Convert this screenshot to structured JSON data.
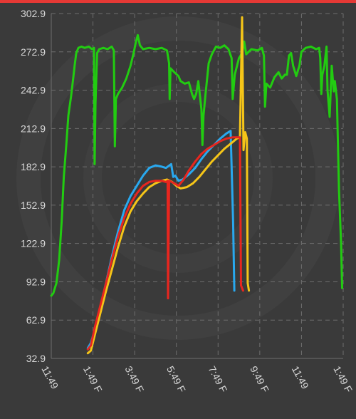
{
  "colors": {
    "background": "#3a3a3a",
    "top_bar": "#e53935",
    "grid": "#6e6e6e",
    "axis_text": "#d8d8d8",
    "green": "#22cc11",
    "blue": "#29a8ee",
    "red": "#e8261f",
    "yellow": "#f5c518"
  },
  "chart_data": {
    "type": "line",
    "title": "",
    "xlabel": "",
    "ylabel": "",
    "grid": true,
    "legend": "none",
    "x_tick_labels": [
      "11:49",
      "1:49 F",
      "3:49 F",
      "5:49 F",
      "7:49 F",
      "9:49 F",
      "11:49",
      "1:49 F"
    ],
    "y_tick_labels": [
      "302.9",
      "272.9",
      "242.9",
      "212.9",
      "182.9",
      "152.9",
      "122.9",
      "92.9",
      "62.9",
      "32.9"
    ],
    "xlim": [
      0,
      14
    ],
    "ylim": [
      32.9,
      302.9
    ],
    "series": [
      {
        "color_key": "green",
        "points": [
          [
            0,
            82
          ],
          [
            0.1,
            84
          ],
          [
            0.25,
            92
          ],
          [
            0.38,
            110
          ],
          [
            0.5,
            140
          ],
          [
            0.6,
            175
          ],
          [
            0.72,
            200
          ],
          [
            0.82,
            223
          ],
          [
            0.95,
            238
          ],
          [
            1.05,
            252
          ],
          [
            1.12,
            262
          ],
          [
            1.2,
            272
          ],
          [
            1.3,
            276
          ],
          [
            1.45,
            277
          ],
          [
            1.6,
            276
          ],
          [
            1.8,
            277
          ],
          [
            1.95,
            275
          ],
          [
            2.05,
            276
          ],
          [
            2.08,
            185
          ],
          [
            2.12,
            232
          ],
          [
            2.2,
            272
          ],
          [
            2.3,
            275
          ],
          [
            2.5,
            276
          ],
          [
            2.7,
            275
          ],
          [
            2.9,
            277
          ],
          [
            3.0,
            274
          ],
          [
            3.05,
            199
          ],
          [
            3.1,
            236
          ],
          [
            3.2,
            240
          ],
          [
            3.4,
            245
          ],
          [
            3.6,
            252
          ],
          [
            3.8,
            262
          ],
          [
            3.95,
            272
          ],
          [
            4.05,
            280
          ],
          [
            4.15,
            286
          ],
          [
            4.25,
            278
          ],
          [
            4.4,
            275
          ],
          [
            4.7,
            276
          ],
          [
            5.0,
            275
          ],
          [
            5.3,
            276
          ],
          [
            5.55,
            274
          ],
          [
            5.65,
            264
          ],
          [
            5.68,
            236
          ],
          [
            5.72,
            260
          ],
          [
            5.9,
            257
          ],
          [
            6.1,
            254
          ],
          [
            6.2,
            250
          ],
          [
            6.4,
            248
          ],
          [
            6.6,
            249
          ],
          [
            6.75,
            240
          ],
          [
            6.85,
            236
          ],
          [
            6.95,
            240
          ],
          [
            7.05,
            250
          ],
          [
            7.2,
            228
          ],
          [
            7.25,
            200
          ],
          [
            7.3,
            223
          ],
          [
            7.4,
            240
          ],
          [
            7.55,
            264
          ],
          [
            7.7,
            271
          ],
          [
            7.9,
            277
          ],
          [
            8.1,
            276
          ],
          [
            8.3,
            278
          ],
          [
            8.5,
            275
          ],
          [
            8.65,
            268
          ],
          [
            8.7,
            236
          ],
          [
            8.8,
            255
          ],
          [
            9.0,
            268
          ],
          [
            9.15,
            272
          ],
          [
            9.25,
            281
          ],
          [
            9.35,
            271
          ],
          [
            9.6,
            275
          ],
          [
            9.9,
            274
          ],
          [
            10.1,
            276
          ],
          [
            10.2,
            270
          ],
          [
            10.25,
            230
          ],
          [
            10.32,
            248
          ],
          [
            10.5,
            245
          ],
          [
            10.7,
            253
          ],
          [
            10.9,
            257
          ],
          [
            11.05,
            252
          ],
          [
            11.2,
            255
          ],
          [
            11.3,
            255
          ],
          [
            11.4,
            270
          ],
          [
            11.5,
            272
          ],
          [
            11.6,
            262
          ],
          [
            11.75,
            254
          ],
          [
            11.9,
            262
          ],
          [
            12.0,
            273
          ],
          [
            12.2,
            276
          ],
          [
            12.45,
            277
          ],
          [
            12.7,
            275
          ],
          [
            12.85,
            276
          ],
          [
            12.9,
            268
          ],
          [
            12.95,
            240
          ],
          [
            13.0,
            255
          ],
          [
            13.1,
            262
          ],
          [
            13.2,
            277
          ],
          [
            13.25,
            243
          ],
          [
            13.35,
            222
          ],
          [
            13.45,
            262
          ],
          [
            13.55,
            242
          ],
          [
            13.6,
            250
          ],
          [
            13.7,
            236
          ],
          [
            13.8,
            165
          ],
          [
            13.9,
            122
          ],
          [
            13.95,
            88
          ]
        ]
      },
      {
        "color_key": "blue",
        "points": [
          [
            1.75,
            41
          ],
          [
            1.9,
            45
          ],
          [
            2.1,
            56
          ],
          [
            2.35,
            72
          ],
          [
            2.6,
            90
          ],
          [
            2.9,
            112
          ],
          [
            3.2,
            132
          ],
          [
            3.5,
            149
          ],
          [
            3.8,
            160
          ],
          [
            4.1,
            168
          ],
          [
            4.4,
            176
          ],
          [
            4.7,
            182
          ],
          [
            5.0,
            184
          ],
          [
            5.3,
            183
          ],
          [
            5.5,
            182
          ],
          [
            5.75,
            185
          ],
          [
            5.85,
            175
          ],
          [
            5.95,
            176
          ],
          [
            6.1,
            172
          ],
          [
            6.3,
            173
          ],
          [
            6.6,
            177
          ],
          [
            6.9,
            182
          ],
          [
            7.2,
            189
          ],
          [
            7.5,
            195
          ],
          [
            7.8,
            200
          ],
          [
            8.1,
            205
          ],
          [
            8.4,
            209
          ],
          [
            8.6,
            211
          ],
          [
            8.72,
            140
          ],
          [
            8.78,
            86
          ]
        ]
      },
      {
        "color_key": "yellow",
        "points": [
          [
            1.75,
            37
          ],
          [
            1.9,
            39
          ],
          [
            2.1,
            52
          ],
          [
            2.35,
            68
          ],
          [
            2.6,
            84
          ],
          [
            2.9,
            102
          ],
          [
            3.2,
            120
          ],
          [
            3.5,
            136
          ],
          [
            3.8,
            148
          ],
          [
            4.1,
            156
          ],
          [
            4.4,
            162
          ],
          [
            4.7,
            167
          ],
          [
            5.0,
            170
          ],
          [
            5.3,
            172
          ],
          [
            5.55,
            173
          ],
          [
            5.8,
            171
          ],
          [
            6.0,
            168
          ],
          [
            6.2,
            166
          ],
          [
            6.5,
            167
          ],
          [
            6.8,
            170
          ],
          [
            7.1,
            175
          ],
          [
            7.4,
            181
          ],
          [
            7.7,
            187
          ],
          [
            8.0,
            192
          ],
          [
            8.3,
            197
          ],
          [
            8.6,
            201
          ],
          [
            8.9,
            205
          ],
          [
            9.05,
            206
          ],
          [
            9.15,
            300
          ],
          [
            9.22,
            196
          ],
          [
            9.3,
            210
          ],
          [
            9.38,
            205
          ],
          [
            9.42,
            92
          ],
          [
            9.48,
            86
          ]
        ]
      },
      {
        "color_key": "red",
        "points": [
          [
            1.75,
            40
          ],
          [
            1.9,
            43
          ],
          [
            2.1,
            58
          ],
          [
            2.35,
            74
          ],
          [
            2.6,
            90
          ],
          [
            2.9,
            110
          ],
          [
            3.2,
            128
          ],
          [
            3.5,
            143
          ],
          [
            3.8,
            154
          ],
          [
            4.1,
            162
          ],
          [
            4.4,
            168
          ],
          [
            4.7,
            171
          ],
          [
            5.0,
            172
          ],
          [
            5.3,
            172
          ],
          [
            5.5,
            171
          ],
          [
            5.58,
            172
          ],
          [
            5.6,
            80
          ],
          [
            5.65,
            172
          ],
          [
            5.9,
            170
          ],
          [
            6.1,
            168
          ],
          [
            6.35,
            173
          ],
          [
            6.6,
            180
          ],
          [
            6.9,
            187
          ],
          [
            7.2,
            193
          ],
          [
            7.5,
            197
          ],
          [
            7.8,
            200
          ],
          [
            8.1,
            203
          ],
          [
            8.4,
            205
          ],
          [
            8.7,
            206
          ],
          [
            8.95,
            206
          ],
          [
            9.05,
            206
          ],
          [
            9.1,
            90
          ],
          [
            9.2,
            86
          ]
        ]
      }
    ]
  }
}
